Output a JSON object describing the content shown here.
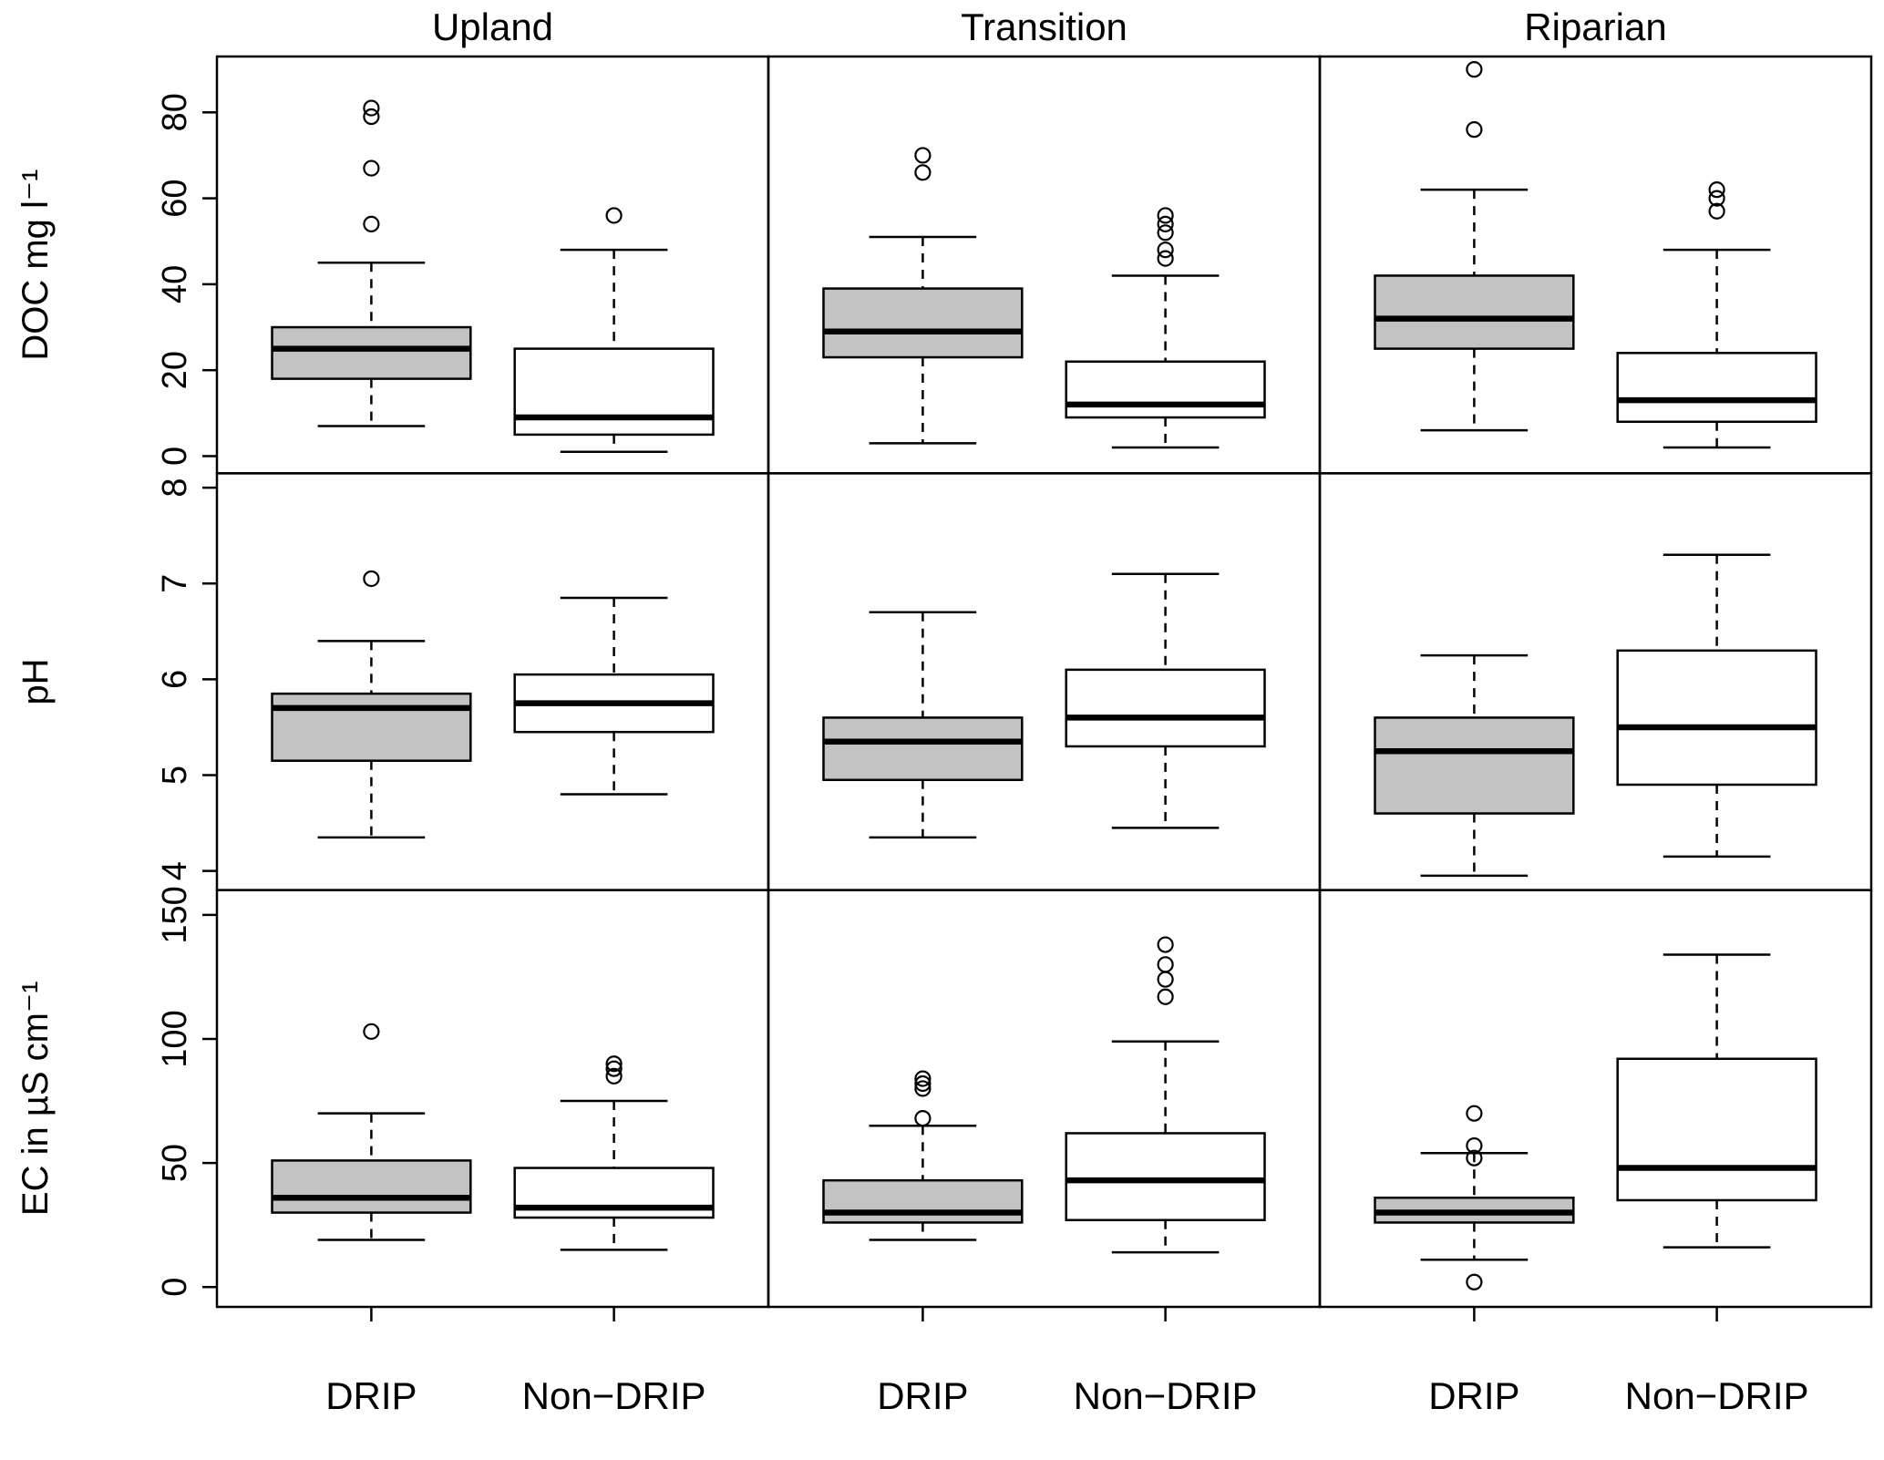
{
  "chart_data": {
    "type": "boxplot",
    "layout": "3x3 panel grid; columns are landscape positions, rows are measured variables; each panel compares DRIP vs Non-DRIP; grid on: false; legend: none",
    "columns": [
      "Upland",
      "Transition",
      "Riparian"
    ],
    "groups": [
      "DRIP",
      "Non−DRIP"
    ],
    "group_fills": [
      "#c3c3c3",
      "#ffffff"
    ],
    "rows": [
      {
        "ylabel": "DOC mg l⁻¹",
        "yticks": [
          0,
          20,
          40,
          60,
          80
        ],
        "ylim": [
          -4,
          93
        ],
        "panels": [
          {
            "column": "Upland",
            "boxes": [
              {
                "group": "DRIP",
                "whisker_low": 7,
                "q1": 18,
                "median": 25,
                "q3": 30,
                "whisker_high": 45,
                "outliers": [
                  54,
                  67,
                  79,
                  81
                ]
              },
              {
                "group": "Non−DRIP",
                "whisker_low": 1,
                "q1": 5,
                "median": 9,
                "q3": 25,
                "whisker_high": 48,
                "outliers": [
                  56
                ]
              }
            ]
          },
          {
            "column": "Transition",
            "boxes": [
              {
                "group": "DRIP",
                "whisker_low": 3,
                "q1": 23,
                "median": 29,
                "q3": 39,
                "whisker_high": 51,
                "outliers": [
                  66,
                  70
                ]
              },
              {
                "group": "Non−DRIP",
                "whisker_low": 2,
                "q1": 9,
                "median": 12,
                "q3": 22,
                "whisker_high": 42,
                "outliers": [
                  46,
                  48,
                  52,
                  54,
                  56
                ]
              }
            ]
          },
          {
            "column": "Riparian",
            "boxes": [
              {
                "group": "DRIP",
                "whisker_low": 6,
                "q1": 25,
                "median": 32,
                "q3": 42,
                "whisker_high": 62,
                "outliers": [
                  76,
                  90
                ]
              },
              {
                "group": "Non−DRIP",
                "whisker_low": 2,
                "q1": 8,
                "median": 13,
                "q3": 24,
                "whisker_high": 48,
                "outliers": [
                  57,
                  60,
                  62
                ]
              }
            ]
          }
        ]
      },
      {
        "ylabel": "pH",
        "yticks": [
          4,
          5,
          6,
          7,
          8
        ],
        "ylim": [
          3.8,
          8.15
        ],
        "panels": [
          {
            "column": "Upland",
            "boxes": [
              {
                "group": "DRIP",
                "whisker_low": 4.35,
                "q1": 5.15,
                "median": 5.7,
                "q3": 5.85,
                "whisker_high": 6.4,
                "outliers": [
                  7.05
                ]
              },
              {
                "group": "Non−DRIP",
                "whisker_low": 4.8,
                "q1": 5.45,
                "median": 5.75,
                "q3": 6.05,
                "whisker_high": 6.85,
                "outliers": []
              }
            ]
          },
          {
            "column": "Transition",
            "boxes": [
              {
                "group": "DRIP",
                "whisker_low": 4.35,
                "q1": 4.95,
                "median": 5.35,
                "q3": 5.6,
                "whisker_high": 6.7,
                "outliers": []
              },
              {
                "group": "Non−DRIP",
                "whisker_low": 4.45,
                "q1": 5.3,
                "median": 5.6,
                "q3": 6.1,
                "whisker_high": 7.1,
                "outliers": []
              }
            ]
          },
          {
            "column": "Riparian",
            "boxes": [
              {
                "group": "DRIP",
                "whisker_low": 3.95,
                "q1": 4.6,
                "median": 5.25,
                "q3": 5.6,
                "whisker_high": 6.25,
                "outliers": []
              },
              {
                "group": "Non−DRIP",
                "whisker_low": 4.15,
                "q1": 4.9,
                "median": 5.5,
                "q3": 6.3,
                "whisker_high": 7.3,
                "outliers": []
              }
            ]
          }
        ]
      },
      {
        "ylabel": "EC in µS cm⁻¹",
        "yticks": [
          0,
          50,
          100,
          150
        ],
        "ylim": [
          -8,
          160
        ],
        "panels": [
          {
            "column": "Upland",
            "boxes": [
              {
                "group": "DRIP",
                "whisker_low": 19,
                "q1": 30,
                "median": 36,
                "q3": 51,
                "whisker_high": 70,
                "outliers": [
                  103
                ]
              },
              {
                "group": "Non−DRIP",
                "whisker_low": 15,
                "q1": 28,
                "median": 32,
                "q3": 48,
                "whisker_high": 75,
                "outliers": [
                  85,
                  88,
                  90
                ]
              }
            ]
          },
          {
            "column": "Transition",
            "boxes": [
              {
                "group": "DRIP",
                "whisker_low": 19,
                "q1": 26,
                "median": 30,
                "q3": 43,
                "whisker_high": 65,
                "outliers": [
                  68,
                  80,
                  82,
                  84
                ]
              },
              {
                "group": "Non−DRIP",
                "whisker_low": 14,
                "q1": 27,
                "median": 43,
                "q3": 62,
                "whisker_high": 99,
                "outliers": [
                  117,
                  124,
                  130,
                  138
                ]
              }
            ]
          },
          {
            "column": "Riparian",
            "boxes": [
              {
                "group": "DRIP",
                "whisker_low": 11,
                "q1": 26,
                "median": 30,
                "q3": 36,
                "whisker_high": 54,
                "outliers": [
                  2,
                  52,
                  57,
                  70
                ]
              },
              {
                "group": "Non−DRIP",
                "whisker_low": 16,
                "q1": 35,
                "median": 48,
                "q3": 92,
                "whisker_high": 134,
                "outliers": []
              }
            ]
          }
        ]
      }
    ]
  }
}
